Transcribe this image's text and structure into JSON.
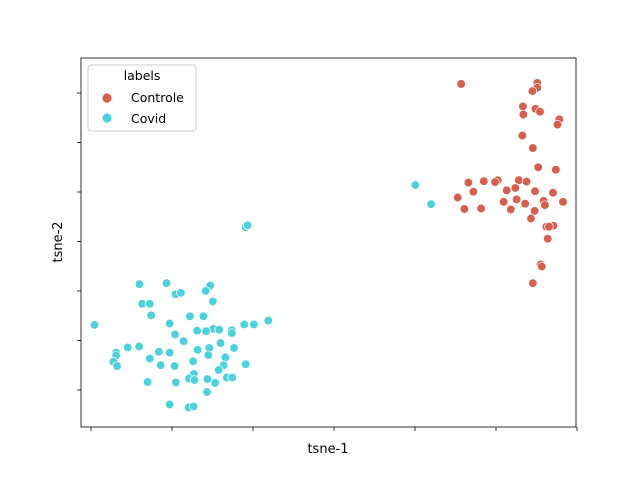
{
  "chart_data": {
    "type": "scatter",
    "xlabel": "tsne-1",
    "ylabel": "tsne-2",
    "xticks_count": 7,
    "yticks_count": 7,
    "tick_labels_visible": false,
    "grid": false,
    "legend": {
      "title": "labels",
      "placement": "upper-left"
    },
    "series": [
      {
        "name": "Controle",
        "color": "#d65f4f",
        "points": [
          [
            3.45,
            7.76
          ],
          [
            5.14,
            7.78
          ],
          [
            5.14,
            7.68
          ],
          [
            5.03,
            7.61
          ],
          [
            4.82,
            7.29
          ],
          [
            5.1,
            7.24
          ],
          [
            4.83,
            7.12
          ],
          [
            5.2,
            7.18
          ],
          [
            5.63,
            7.02
          ],
          [
            5.59,
            6.91
          ],
          [
            4.81,
            6.68
          ],
          [
            5.04,
            6.42
          ],
          [
            5.16,
            6.02
          ],
          [
            5.55,
            5.97
          ],
          [
            3.61,
            5.7
          ],
          [
            3.95,
            5.73
          ],
          [
            4.26,
            5.75
          ],
          [
            4.73,
            5.75
          ],
          [
            4.9,
            5.72
          ],
          [
            5.09,
            5.52
          ],
          [
            5.49,
            5.49
          ],
          [
            4.46,
            5.54
          ],
          [
            3.37,
            5.39
          ],
          [
            3.72,
            5.51
          ],
          [
            4.2,
            5.71
          ],
          [
            4.65,
            5.59
          ],
          [
            3.52,
            5.15
          ],
          [
            3.89,
            5.16
          ],
          [
            4.39,
            5.3
          ],
          [
            4.55,
            5.14
          ],
          [
            4.68,
            5.35
          ],
          [
            4.87,
            5.26
          ],
          [
            5.28,
            5.32
          ],
          [
            5.31,
            5.23
          ],
          [
            5.71,
            5.3
          ],
          [
            5.0,
            4.95
          ],
          [
            5.08,
            5.11
          ],
          [
            5.5,
            4.8
          ],
          [
            5.34,
            4.78
          ],
          [
            5.4,
            4.78
          ],
          [
            5.37,
            4.53
          ],
          [
            5.21,
            3.99
          ],
          [
            5.24,
            3.95
          ],
          [
            5.04,
            3.6
          ]
        ]
      },
      {
        "name": "Covid",
        "color": "#4fd1dc",
        "points": [
          [
            2.43,
            5.65
          ],
          [
            2.78,
            5.25
          ],
          [
            -1.34,
            4.77
          ],
          [
            -1.3,
            4.81
          ],
          [
            -3.7,
            3.58
          ],
          [
            -3.1,
            3.6
          ],
          [
            -2.9,
            3.37
          ],
          [
            -2.78,
            3.4
          ],
          [
            -2.13,
            3.55
          ],
          [
            -2.23,
            3.44
          ],
          [
            -2.07,
            3.22
          ],
          [
            -3.64,
            3.17
          ],
          [
            -3.47,
            3.17
          ],
          [
            -1.37,
            2.74
          ],
          [
            -1.16,
            2.74
          ],
          [
            -0.84,
            2.82
          ],
          [
            -4.7,
            2.73
          ],
          [
            -3.44,
            2.93
          ],
          [
            -3.03,
            2.76
          ],
          [
            -2.91,
            2.53
          ],
          [
            -2.28,
            2.91
          ],
          [
            -2.58,
            2.91
          ],
          [
            -2.42,
            2.61
          ],
          [
            -2.06,
            2.65
          ],
          [
            -2.22,
            2.6
          ],
          [
            -1.93,
            2.63
          ],
          [
            -1.65,
            2.62
          ],
          [
            -1.65,
            2.56
          ],
          [
            -1.9,
            2.35
          ],
          [
            -2.72,
            2.39
          ],
          [
            -1.6,
            2.25
          ],
          [
            -4.22,
            2.15
          ],
          [
            -4.22,
            2.09
          ],
          [
            -3.96,
            2.26
          ],
          [
            -3.71,
            2.28
          ],
          [
            -3.27,
            2.17
          ],
          [
            -3.03,
            2.15
          ],
          [
            -2.41,
            2.21
          ],
          [
            -2.15,
            2.25
          ],
          [
            -1.79,
            2.05
          ],
          [
            -2.17,
            2.1
          ],
          [
            -4.28,
            1.96
          ],
          [
            -4.2,
            1.87
          ],
          [
            -3.47,
            2.03
          ],
          [
            -3.23,
            1.89
          ],
          [
            -2.92,
            1.87
          ],
          [
            -2.51,
            1.97
          ],
          [
            -1.83,
            1.89
          ],
          [
            -1.94,
            1.79
          ],
          [
            -1.34,
            1.91
          ],
          [
            -2.49,
            1.71
          ],
          [
            -2.19,
            1.6
          ],
          [
            -1.76,
            1.63
          ],
          [
            -1.64,
            1.63
          ],
          [
            -3.52,
            1.54
          ],
          [
            -2.89,
            1.53
          ],
          [
            -2.6,
            1.61
          ],
          [
            -2.48,
            1.58
          ],
          [
            -2.02,
            1.52
          ],
          [
            -2.2,
            1.33
          ],
          [
            -3.03,
            1.07
          ],
          [
            -2.61,
            1.01
          ],
          [
            -2.5,
            1.03
          ]
        ]
      }
    ],
    "xlim": [
      -5.0,
      6.0
    ],
    "ylim": [
      0.6,
      8.3
    ]
  }
}
